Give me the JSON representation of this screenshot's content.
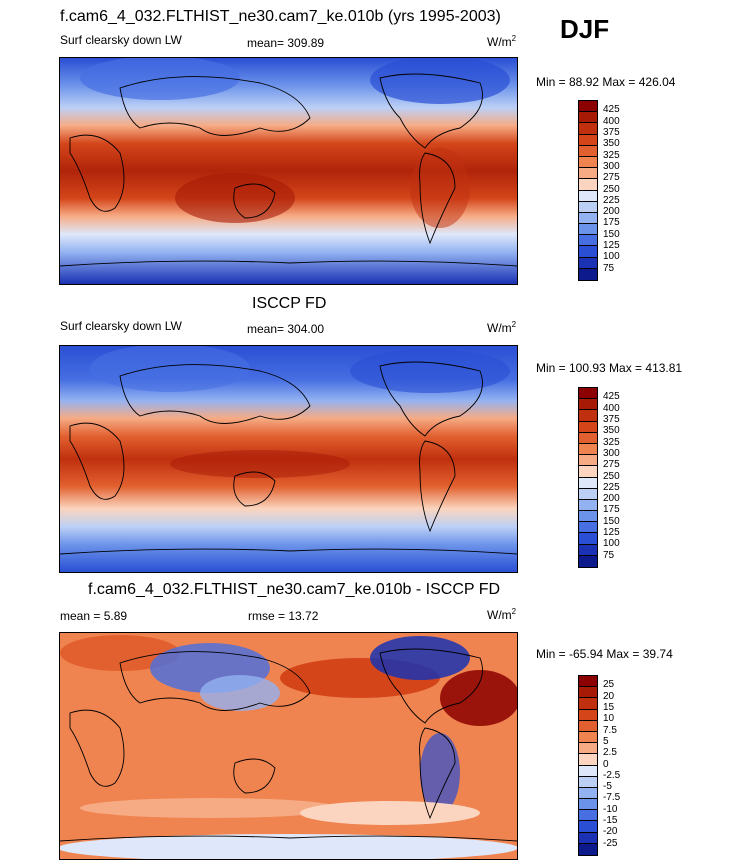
{
  "season": "DJF",
  "panels": [
    {
      "title": "f.cam6_4_032.FLTHIST_ne30.cam7_ke.010b (yrs 1995-2003)",
      "variable": "Surf clearsky down LW",
      "stat": "mean= 309.89",
      "units_base": "W/m",
      "units_exp": "2",
      "minmax": "Min =  88.92 Max = 426.04",
      "cbar_labels": [
        "425",
        "400",
        "375",
        "350",
        "325",
        "300",
        "275",
        "250",
        "225",
        "200",
        "175",
        "150",
        "125",
        "100",
        "75"
      ],
      "cbar_colors": [
        "#8b0000",
        "#a71a06",
        "#c0300f",
        "#d4451a",
        "#e2602f",
        "#ef8450",
        "#f6ab85",
        "#fbd5bf",
        "#dfe8fb",
        "#bcd0f6",
        "#93b2f1",
        "#6c93ea",
        "#476fe2",
        "#2a4fd4",
        "#1a32b3",
        "#0c1a8c"
      ]
    },
    {
      "title": "ISCCP FD",
      "variable": "Surf clearsky down LW",
      "stat": "mean= 304.00",
      "units_base": "W/m",
      "units_exp": "2",
      "minmax": "Min = 100.93 Max = 413.81",
      "cbar_labels": [
        "425",
        "400",
        "375",
        "350",
        "325",
        "300",
        "275",
        "250",
        "225",
        "200",
        "175",
        "150",
        "125",
        "100",
        "75"
      ],
      "cbar_colors": [
        "#8b0000",
        "#a71a06",
        "#c0300f",
        "#d4451a",
        "#e2602f",
        "#ef8450",
        "#f6ab85",
        "#fbd5bf",
        "#dfe8fb",
        "#bcd0f6",
        "#93b2f1",
        "#6c93ea",
        "#476fe2",
        "#2a4fd4",
        "#1a32b3",
        "#0c1a8c"
      ]
    },
    {
      "title": "f.cam6_4_032.FLTHIST_ne30.cam7_ke.010b - ISCCP FD",
      "variable": "mean =   5.89",
      "stat": "rmse =  13.72",
      "units_base": "W/m",
      "units_exp": "2",
      "minmax": "Min = -65.94 Max =  39.74",
      "cbar_labels": [
        "25",
        "20",
        "15",
        "10",
        "7.5",
        "5",
        "2.5",
        "0",
        "-2.5",
        "-5",
        "-7.5",
        "-10",
        "-15",
        "-20",
        "-25"
      ],
      "cbar_colors": [
        "#8b0000",
        "#a71a06",
        "#c0300f",
        "#d4451a",
        "#e2602f",
        "#ef8450",
        "#f6ab85",
        "#fbd5bf",
        "#dfe8fb",
        "#bcd0f6",
        "#93b2f1",
        "#6c93ea",
        "#476fe2",
        "#2a4fd4",
        "#1a32b3",
        "#0c1a8c"
      ]
    }
  ]
}
